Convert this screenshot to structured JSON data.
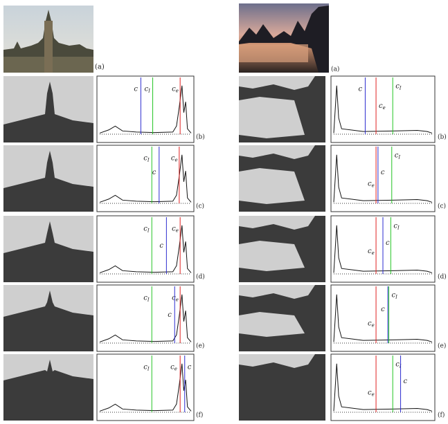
{
  "left": {
    "photo_label": "(a)",
    "rows": [
      {
        "label": "(b)",
        "thresholds": [
          {
            "text": "c"
          },
          {
            "text": "c",
            "sub": "I"
          },
          {
            "text": "c",
            "sub": "e"
          }
        ]
      },
      {
        "label": "(c)",
        "thresholds": [
          {
            "text": "c",
            "sub": "I"
          },
          {
            "text": "c"
          },
          {
            "text": "c",
            "sub": "e"
          }
        ]
      },
      {
        "label": "(d)",
        "thresholds": [
          {
            "text": "c",
            "sub": "I"
          },
          {
            "text": "c"
          },
          {
            "text": "c",
            "sub": "e"
          }
        ]
      },
      {
        "label": "(e)",
        "thresholds": [
          {
            "text": "c",
            "sub": "I"
          },
          {
            "text": "c",
            "sub": "e"
          },
          {
            "text": "c"
          }
        ]
      },
      {
        "label": "(f)",
        "thresholds": [
          {
            "text": "c",
            "sub": "I"
          },
          {
            "text": "c",
            "sub": "e"
          },
          {
            "text": "c"
          }
        ]
      }
    ]
  },
  "right": {
    "photo_label": "(a)",
    "rows": [
      {
        "label": "(b)",
        "thresholds": [
          {
            "text": "c"
          },
          {
            "text": "c",
            "sub": "e"
          },
          {
            "text": "c",
            "sub": "I"
          }
        ]
      },
      {
        "label": "(c)",
        "thresholds": [
          {
            "text": "c",
            "sub": "I"
          },
          {
            "text": "c"
          },
          {
            "text": "c",
            "sub": "e"
          }
        ]
      },
      {
        "label": "(d)",
        "thresholds": [
          {
            "text": "c",
            "sub": "I"
          },
          {
            "text": "c"
          },
          {
            "text": "c",
            "sub": "e"
          }
        ]
      },
      {
        "label": "(e)",
        "thresholds": [
          {
            "text": "c",
            "sub": "I"
          },
          {
            "text": "c"
          },
          {
            "text": "c",
            "sub": "e"
          }
        ]
      },
      {
        "label": "(f)",
        "thresholds": [
          {
            "text": "c",
            "sub": "I"
          },
          {
            "text": "c"
          },
          {
            "text": "c",
            "sub": "e"
          }
        ]
      }
    ]
  }
}
